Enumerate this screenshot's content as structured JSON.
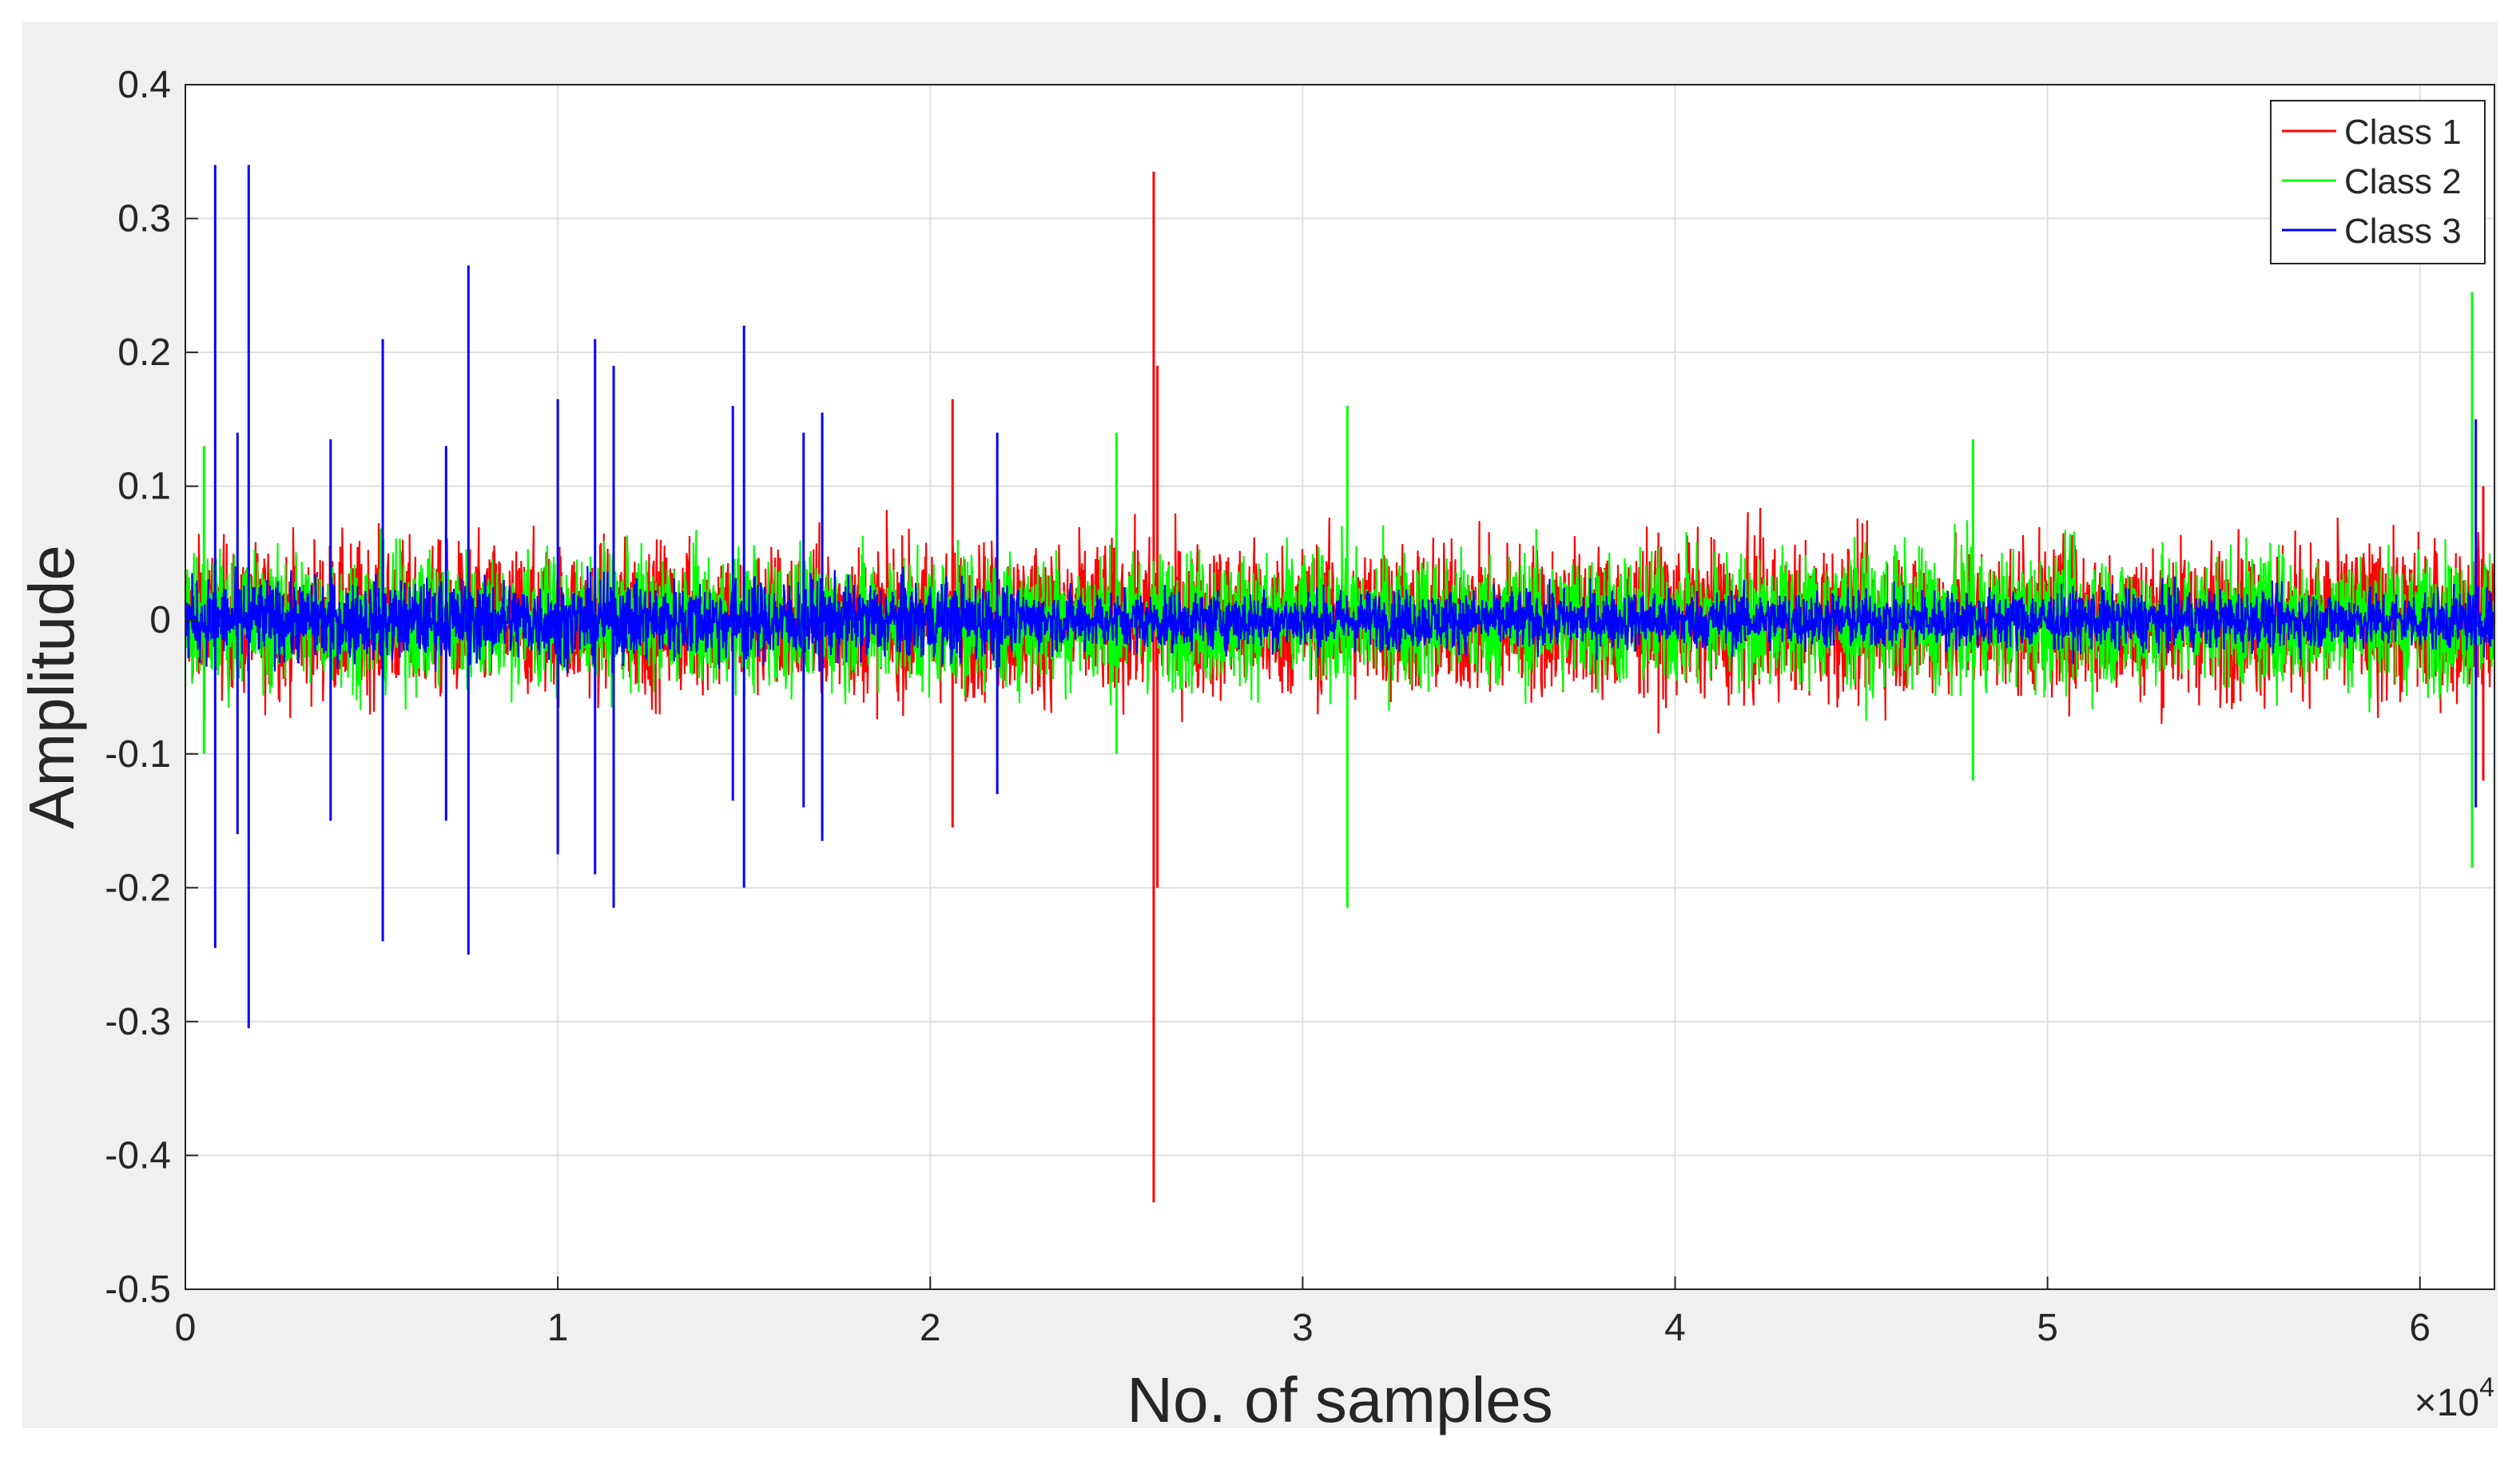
{
  "chart_data": {
    "type": "line",
    "xlabel": "No. of samples",
    "ylabel": "Amplitude",
    "x_exponent_label": "×10",
    "x_exponent_power": "4",
    "xlim": [
      0,
      6.2
    ],
    "ylim": [
      -0.5,
      0.4
    ],
    "x_scale_factor": 10000,
    "grid": true,
    "legend_position": "top-right",
    "xticks": [
      {
        "value": 0,
        "label": "0"
      },
      {
        "value": 1,
        "label": "1"
      },
      {
        "value": 2,
        "label": "2"
      },
      {
        "value": 3,
        "label": "3"
      },
      {
        "value": 4,
        "label": "4"
      },
      {
        "value": 5,
        "label": "5"
      },
      {
        "value": 6,
        "label": "6"
      }
    ],
    "yticks": [
      {
        "value": 0.4,
        "label": "0.4"
      },
      {
        "value": 0.3,
        "label": "0.3"
      },
      {
        "value": 0.2,
        "label": "0.2"
      },
      {
        "value": 0.1,
        "label": "0.1"
      },
      {
        "value": 0,
        "label": "0"
      },
      {
        "value": -0.1,
        "label": "-0.1"
      },
      {
        "value": -0.2,
        "label": "-0.2"
      },
      {
        "value": -0.3,
        "label": "-0.3"
      },
      {
        "value": -0.4,
        "label": "-0.4"
      },
      {
        "value": -0.5,
        "label": "-0.5"
      }
    ],
    "series": [
      {
        "name": "Class 1",
        "color": "#ff0000",
        "band": 0.09,
        "spikes": [
          [
            2.06,
            0.165,
            -0.155
          ],
          [
            2.6,
            0.335,
            -0.435
          ],
          [
            2.61,
            0.19,
            -0.2
          ],
          [
            6.17,
            0.1,
            -0.12
          ]
        ]
      },
      {
        "name": "Class 2",
        "color": "#00ff00",
        "band": 0.08,
        "spikes": [
          [
            0.05,
            0.13,
            -0.1
          ],
          [
            2.5,
            0.14,
            -0.1
          ],
          [
            3.12,
            0.16,
            -0.215
          ],
          [
            4.8,
            0.135,
            -0.12
          ],
          [
            6.14,
            0.245,
            -0.185
          ]
        ]
      },
      {
        "name": "Class 3",
        "color": "#0000ff",
        "band": 0.035,
        "spikes": [
          [
            0.08,
            0.34,
            -0.245
          ],
          [
            0.14,
            0.14,
            -0.16
          ],
          [
            0.17,
            0.34,
            -0.305
          ],
          [
            0.39,
            0.135,
            -0.15
          ],
          [
            0.53,
            0.21,
            -0.24
          ],
          [
            0.7,
            0.13,
            -0.15
          ],
          [
            0.76,
            0.265,
            -0.25
          ],
          [
            1.0,
            0.165,
            -0.175
          ],
          [
            1.1,
            0.21,
            -0.19
          ],
          [
            1.15,
            0.19,
            -0.215
          ],
          [
            1.47,
            0.16,
            -0.135
          ],
          [
            1.5,
            0.22,
            -0.2
          ],
          [
            1.66,
            0.14,
            -0.14
          ],
          [
            1.71,
            0.155,
            -0.165
          ],
          [
            2.18,
            0.14,
            -0.13
          ],
          [
            6.15,
            0.15,
            -0.14
          ]
        ]
      }
    ]
  }
}
